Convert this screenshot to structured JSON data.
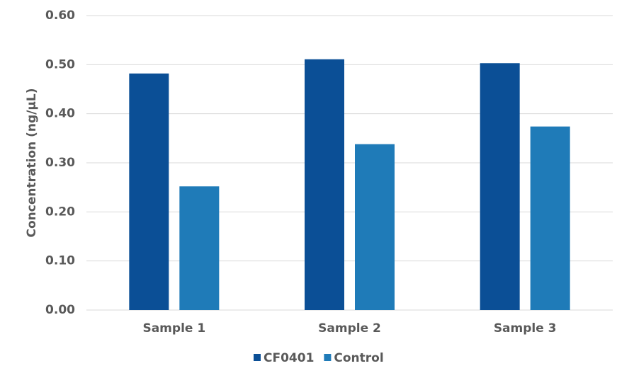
{
  "chart_data": {
    "type": "bar",
    "y_label": "Concentration (ng/µL)",
    "categories": [
      "Sample 1",
      "Sample 2",
      "Sample 3"
    ],
    "series": [
      {
        "name": "CF0401",
        "color": "#0b4f96",
        "values": [
          0.482,
          0.511,
          0.503
        ]
      },
      {
        "name": "Control",
        "color": "#1f7bb8",
        "values": [
          0.252,
          0.338,
          0.374
        ]
      }
    ],
    "ylim": [
      0,
      0.6
    ],
    "yticks": [
      {
        "value": 0,
        "label": "0.00"
      },
      {
        "value": 0.1,
        "label": "0.10"
      },
      {
        "value": 0.2,
        "label": "0.20"
      },
      {
        "value": 0.3,
        "label": "0.30"
      },
      {
        "value": 0.4,
        "label": "0.40"
      },
      {
        "value": 0.5,
        "label": "0.50"
      },
      {
        "value": 0.6,
        "label": "0.60"
      }
    ],
    "grid": true,
    "legend": "bottom"
  }
}
